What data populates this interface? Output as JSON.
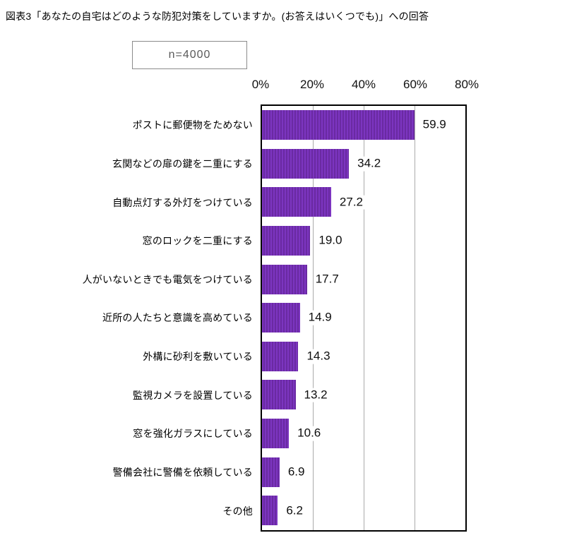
{
  "title": "図表3「あなたの自宅はどのような防犯対策をしていますか。(お答えはいくつでも)」への回答",
  "sample_size": "n=4000",
  "chart_data": {
    "type": "bar",
    "orientation": "horizontal",
    "title": "図表3「あなたの自宅はどのような防犯対策をしていますか。(お答えはいくつでも)」への回答",
    "sample_size": "n=4000",
    "categories": [
      "ポストに郵便物をためない",
      "玄関などの扉の鍵を二重にする",
      "自動点灯する外灯をつけている",
      "窓のロックを二重にする",
      "人がいないときでも電気をつけている",
      "近所の人たちと意識を高めている",
      "外構に砂利を敷いている",
      "監視カメラを設置している",
      "窓を強化ガラスにしている",
      "警備会社に警備を依頼している",
      "その他"
    ],
    "values": [
      59.9,
      34.2,
      27.2,
      19.0,
      17.7,
      14.9,
      14.3,
      13.2,
      10.6,
      6.9,
      6.2
    ],
    "value_labels": [
      "59.9",
      "34.2",
      "27.2",
      "19.0",
      "17.7",
      "14.9",
      "14.3",
      "13.2",
      "10.6",
      "6.9",
      "6.2"
    ],
    "x_ticks": [
      "0%",
      "20%",
      "40%",
      "60%",
      "80%"
    ],
    "xlim": [
      0,
      80
    ],
    "grid": "vertical-lines-at-20-40-60",
    "legend": "none",
    "bar_stripe_light": "#7C35C0",
    "bar_stripe_dark": "#6A2AA2",
    "grid_color": "#ABABAB",
    "plot_border_color": "#000000",
    "value_label_color": "#0d0d0d",
    "tick_label_color": "#111111"
  }
}
